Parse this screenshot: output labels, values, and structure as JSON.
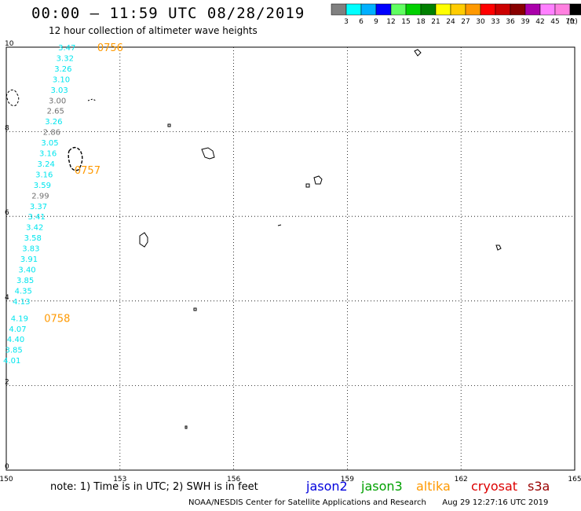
{
  "title": "00:00 – 11:59 UTC 08/28/2019",
  "subtitle": "12 hour collection of altimeter wave heights",
  "note": "note: 1) Time is in UTC; 2) SWH is in feet",
  "credit": "NOAA/NESDIS Center for Satellite Applications and Research",
  "generated": "Aug 29 12:27:16 UTC 2019",
  "satellites": [
    {
      "name": "jason2",
      "color": "#0000dd"
    },
    {
      "name": "jason3",
      "color": "#00a000"
    },
    {
      "name": "altika",
      "color": "#ff9900"
    },
    {
      "name": "cryosat",
      "color": "#dd0000"
    },
    {
      "name": "s3a",
      "color": "#990000"
    }
  ],
  "scale": {
    "labels": [
      "3",
      "6",
      "9",
      "12",
      "15",
      "18",
      "21",
      "24",
      "27",
      "30",
      "33",
      "36",
      "39",
      "42",
      "45",
      "70"
    ],
    "unit": "(ft)",
    "colors": [
      "#808080",
      "#00ffff",
      "#00b0ff",
      "#0000ff",
      "#60ff60",
      "#00d000",
      "#008000",
      "#ffff00",
      "#ffcc00",
      "#ff9900",
      "#ff0000",
      "#cc0000",
      "#880000",
      "#aa00aa",
      "#ff80ff",
      "#ff80e0",
      "#000000"
    ]
  },
  "axes": {
    "lon_ticks": [
      "150",
      "153",
      "156",
      "159",
      "162",
      "165"
    ],
    "lat_ticks": [
      "0",
      "2",
      "4",
      "6",
      "8",
      "10"
    ]
  },
  "time_labels": [
    {
      "text": "0756",
      "lon": 152.4,
      "lat": 10.0
    },
    {
      "text": "0757",
      "lon": 151.8,
      "lat": 7.1
    },
    {
      "text": "0758",
      "lon": 151.0,
      "lat": 3.6
    }
  ],
  "observations": [
    {
      "v": "3.47",
      "c": "#00e5ee",
      "lon": 151.6,
      "lat": 10.0
    },
    {
      "v": "3.32",
      "c": "#00e5ee",
      "lon": 151.55,
      "lat": 9.75
    },
    {
      "v": "3.26",
      "c": "#00e5ee",
      "lon": 151.5,
      "lat": 9.5
    },
    {
      "v": "3.10",
      "c": "#00e5ee",
      "lon": 151.45,
      "lat": 9.25
    },
    {
      "v": "3.03",
      "c": "#00e5ee",
      "lon": 151.4,
      "lat": 9.0
    },
    {
      "v": "3.00",
      "c": "#707070",
      "lon": 151.35,
      "lat": 8.75
    },
    {
      "v": "2.65",
      "c": "#707070",
      "lon": 151.3,
      "lat": 8.5
    },
    {
      "v": "3.26",
      "c": "#00e5ee",
      "lon": 151.25,
      "lat": 8.25
    },
    {
      "v": "2.86",
      "c": "#707070",
      "lon": 151.2,
      "lat": 8.0
    },
    {
      "v": "3.05",
      "c": "#00e5ee",
      "lon": 151.15,
      "lat": 7.75
    },
    {
      "v": "3.16",
      "c": "#00e5ee",
      "lon": 151.1,
      "lat": 7.5
    },
    {
      "v": "3.24",
      "c": "#00e5ee",
      "lon": 151.05,
      "lat": 7.25
    },
    {
      "v": "3.16",
      "c": "#00e5ee",
      "lon": 151.0,
      "lat": 7.0
    },
    {
      "v": "3.59",
      "c": "#00e5ee",
      "lon": 150.95,
      "lat": 6.75
    },
    {
      "v": "2.99",
      "c": "#707070",
      "lon": 150.9,
      "lat": 6.5
    },
    {
      "v": "3.37",
      "c": "#00e5ee",
      "lon": 150.85,
      "lat": 6.25
    },
    {
      "v": "3.41",
      "c": "#00e5ee",
      "lon": 150.8,
      "lat": 6.0
    },
    {
      "v": "3.42",
      "c": "#00e5ee",
      "lon": 150.75,
      "lat": 5.75
    },
    {
      "v": "3.58",
      "c": "#00e5ee",
      "lon": 150.7,
      "lat": 5.5
    },
    {
      "v": "3.83",
      "c": "#00e5ee",
      "lon": 150.65,
      "lat": 5.25
    },
    {
      "v": "3.91",
      "c": "#00e5ee",
      "lon": 150.6,
      "lat": 5.0
    },
    {
      "v": "3.40",
      "c": "#00e5ee",
      "lon": 150.55,
      "lat": 4.75
    },
    {
      "v": "3.85",
      "c": "#00e5ee",
      "lon": 150.5,
      "lat": 4.5
    },
    {
      "v": "4.35",
      "c": "#00e5ee",
      "lon": 150.45,
      "lat": 4.25
    },
    {
      "v": "4.13",
      "c": "#00e5ee",
      "lon": 150.4,
      "lat": 4.0
    },
    {
      "v": "4.19",
      "c": "#00e5ee",
      "lon": 150.35,
      "lat": 3.6
    },
    {
      "v": "4.07",
      "c": "#00e5ee",
      "lon": 150.3,
      "lat": 3.35
    },
    {
      "v": "4.40",
      "c": "#00e5ee",
      "lon": 150.25,
      "lat": 3.1
    },
    {
      "v": "3.85",
      "c": "#00e5ee",
      "lon": 150.2,
      "lat": 2.85
    },
    {
      "v": "4.01",
      "c": "#00e5ee",
      "lon": 150.15,
      "lat": 2.6
    }
  ]
}
